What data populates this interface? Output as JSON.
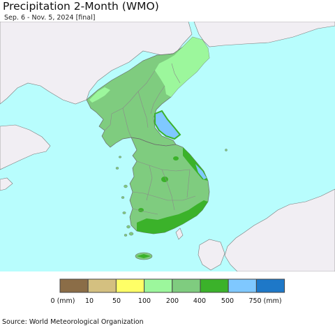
{
  "title": "Precipitation 2-Month (WMO)",
  "subtitle": "Sep. 6 - Nov. 5, 2024 [final]",
  "source": "Source: World Meteorological Organization",
  "colors": {
    "sea": "#b8fdfd",
    "foreign_land": "#f1eef3",
    "land_200_400": "#7fcc7f",
    "land_100_200": "#9cf79c",
    "land_400_500": "#3bb22a",
    "water_500_750": "#7fc8ff",
    "border": "#8a8a8a"
  },
  "legend": {
    "bins": [
      {
        "color": "#8b6d47"
      },
      {
        "color": "#d4c080"
      },
      {
        "color": "#ffff66"
      },
      {
        "color": "#9cf79c"
      },
      {
        "color": "#7fcc7f"
      },
      {
        "color": "#3bb22a"
      },
      {
        "color": "#7fc8ff"
      },
      {
        "color": "#1e78c8"
      }
    ],
    "labels": [
      "0 (mm)",
      "10",
      "50",
      "100",
      "200",
      "400",
      "500",
      "750 (mm)"
    ]
  }
}
